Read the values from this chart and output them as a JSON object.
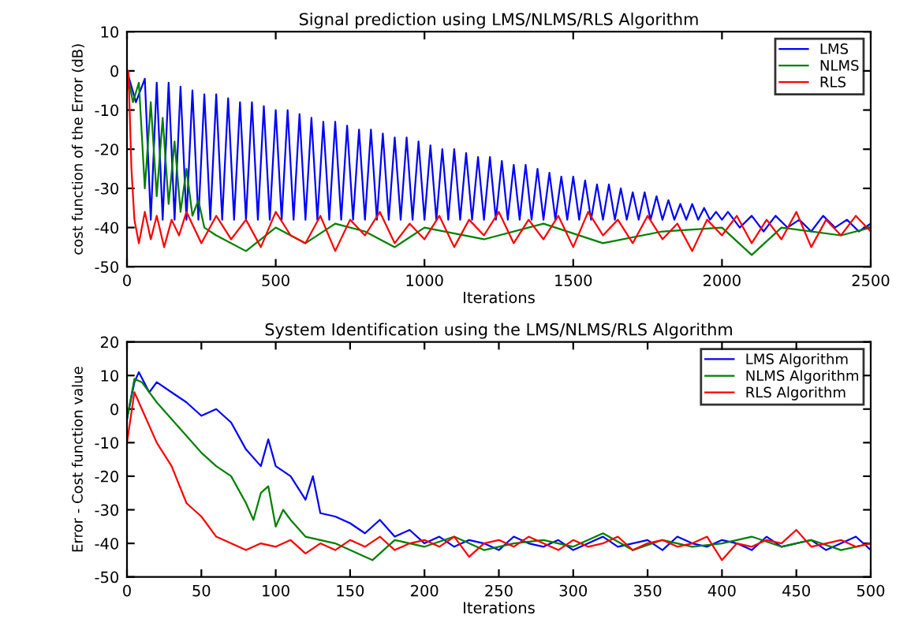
{
  "chart_data": [
    {
      "type": "line",
      "title": "Signal prediction using LMS/NLMS/RLS Algorithm",
      "xlabel": "Iterations",
      "ylabel": "cost function of the Error (dB)",
      "xlim": [
        0,
        2500
      ],
      "ylim": [
        -50,
        10
      ],
      "xticks": [
        0,
        500,
        1000,
        1500,
        2000,
        2500
      ],
      "yticks": [
        -50,
        -40,
        -30,
        -20,
        -10,
        0,
        10
      ],
      "legend": "top right",
      "grid": false,
      "series": [
        {
          "name": "LMS",
          "color": "#0000ff",
          "x": [
            0,
            30,
            60,
            80,
            100,
            120,
            140,
            160,
            180,
            200,
            220,
            240,
            260,
            280,
            300,
            320,
            340,
            360,
            380,
            400,
            420,
            440,
            460,
            480,
            500,
            520,
            540,
            560,
            580,
            600,
            620,
            640,
            660,
            680,
            700,
            720,
            740,
            760,
            780,
            800,
            820,
            840,
            860,
            880,
            900,
            920,
            940,
            960,
            980,
            1000,
            1020,
            1040,
            1060,
            1080,
            1100,
            1120,
            1140,
            1160,
            1180,
            1200,
            1220,
            1240,
            1260,
            1280,
            1300,
            1320,
            1340,
            1360,
            1380,
            1400,
            1420,
            1440,
            1460,
            1480,
            1500,
            1520,
            1540,
            1560,
            1580,
            1600,
            1620,
            1640,
            1660,
            1680,
            1700,
            1720,
            1740,
            1760,
            1780,
            1800,
            1820,
            1840,
            1860,
            1880,
            1900,
            1920,
            1940,
            1960,
            1980,
            2000,
            2020,
            2060,
            2100,
            2140,
            2180,
            2220,
            2260,
            2300,
            2340,
            2380,
            2420,
            2460,
            2500
          ],
          "values": [
            0,
            -8,
            -2,
            -38,
            -3,
            -38,
            -3,
            -38,
            -4,
            -38,
            -5,
            -38,
            -6,
            -38,
            -6,
            -38,
            -7,
            -38,
            -8,
            -38,
            -8,
            -38,
            -9,
            -38,
            -10,
            -38,
            -10,
            -38,
            -11,
            -38,
            -12,
            -38,
            -13,
            -38,
            -13,
            -38,
            -14,
            -38,
            -15,
            -38,
            -15,
            -38,
            -16,
            -38,
            -17,
            -38,
            -17,
            -38,
            -18,
            -38,
            -19,
            -38,
            -20,
            -38,
            -20,
            -38,
            -21,
            -38,
            -22,
            -38,
            -22,
            -38,
            -23,
            -38,
            -24,
            -38,
            -24,
            -38,
            -25,
            -38,
            -26,
            -38,
            -27,
            -38,
            -27,
            -38,
            -28,
            -38,
            -29,
            -38,
            -29,
            -38,
            -30,
            -38,
            -31,
            -38,
            -31,
            -38,
            -32,
            -38,
            -33,
            -38,
            -34,
            -38,
            -34,
            -38,
            -35,
            -38,
            -36,
            -38,
            -36,
            -40,
            -37,
            -41,
            -37,
            -40,
            -38,
            -41,
            -37,
            -40,
            -38,
            -41,
            -39
          ]
        },
        {
          "name": "NLMS",
          "color": "#008000",
          "x": [
            0,
            20,
            40,
            60,
            80,
            100,
            120,
            140,
            160,
            180,
            200,
            220,
            240,
            260,
            300,
            400,
            500,
            600,
            700,
            800,
            900,
            1000,
            1200,
            1400,
            1600,
            1800,
            2000,
            2100,
            2200,
            2400,
            2500
          ],
          "values": [
            0,
            -8,
            -3,
            -30,
            -8,
            -32,
            -12,
            -34,
            -18,
            -36,
            -25,
            -37,
            -33,
            -40,
            -42,
            -46,
            -40,
            -44,
            -39,
            -41,
            -45,
            -40,
            -43,
            -39,
            -44,
            -41,
            -40,
            -47,
            -40,
            -42,
            -40
          ]
        },
        {
          "name": "RLS",
          "color": "#ff0000",
          "x": [
            0,
            5,
            15,
            25,
            40,
            60,
            80,
            100,
            125,
            150,
            175,
            200,
            250,
            300,
            350,
            400,
            450,
            500,
            550,
            600,
            650,
            700,
            750,
            800,
            850,
            900,
            950,
            1000,
            1050,
            1100,
            1150,
            1200,
            1250,
            1300,
            1350,
            1400,
            1450,
            1500,
            1550,
            1600,
            1650,
            1700,
            1750,
            1800,
            1850,
            1900,
            1950,
            2000,
            2050,
            2100,
            2150,
            2200,
            2250,
            2300,
            2350,
            2400,
            2450,
            2500
          ],
          "values": [
            -5,
            0,
            -25,
            -38,
            -44,
            -36,
            -43,
            -37,
            -45,
            -38,
            -42,
            -36,
            -44,
            -37,
            -43,
            -38,
            -45,
            -36,
            -42,
            -44,
            -37,
            -46,
            -38,
            -42,
            -36,
            -44,
            -39,
            -43,
            -37,
            -45,
            -38,
            -42,
            -36,
            -44,
            -38,
            -43,
            -37,
            -45,
            -36,
            -42,
            -38,
            -44,
            -37,
            -43,
            -39,
            -46,
            -38,
            -42,
            -37,
            -44,
            -38,
            -43,
            -36,
            -45,
            -38,
            -42,
            -37,
            -41
          ]
        }
      ]
    },
    {
      "type": "line",
      "title": "System Identification using the LMS/NLMS/RLS Algorithm",
      "xlabel": "Iterations",
      "ylabel": "Error - Cost function value",
      "xlim": [
        0,
        500
      ],
      "ylim": [
        -50,
        20
      ],
      "xticks": [
        0,
        50,
        100,
        150,
        200,
        250,
        300,
        350,
        400,
        450,
        500
      ],
      "yticks": [
        -50,
        -40,
        -30,
        -20,
        -10,
        0,
        10,
        20
      ],
      "legend": "top right",
      "grid": false,
      "series": [
        {
          "name": "LMS Algorithm",
          "color": "#0000ff",
          "x": [
            0,
            5,
            8,
            15,
            20,
            30,
            40,
            50,
            60,
            70,
            80,
            90,
            95,
            100,
            110,
            120,
            125,
            130,
            140,
            150,
            160,
            170,
            180,
            190,
            200,
            210,
            220,
            230,
            240,
            250,
            260,
            270,
            280,
            290,
            300,
            310,
            320,
            330,
            340,
            350,
            360,
            370,
            380,
            390,
            400,
            410,
            420,
            430,
            440,
            450,
            460,
            470,
            480,
            490,
            500
          ],
          "values": [
            -3,
            8,
            11,
            5,
            8,
            5,
            2,
            -2,
            0,
            -4,
            -12,
            -17,
            -9,
            -17,
            -20,
            -27,
            -20,
            -31,
            -32,
            -34,
            -37,
            -33,
            -38,
            -36,
            -40,
            -38,
            -41,
            -39,
            -40,
            -42,
            -38,
            -40,
            -41,
            -39,
            -42,
            -40,
            -38,
            -41,
            -40,
            -39,
            -42,
            -38,
            -40,
            -41,
            -39,
            -40,
            -42,
            -38,
            -41,
            -40,
            -39,
            -42,
            -40,
            -38,
            -42
          ]
        },
        {
          "name": "NLMS Algorithm",
          "color": "#008000",
          "x": [
            0,
            5,
            10,
            20,
            30,
            40,
            50,
            60,
            70,
            80,
            85,
            90,
            95,
            100,
            105,
            110,
            120,
            140,
            165,
            180,
            200,
            220,
            240,
            260,
            280,
            300,
            320,
            340,
            360,
            380,
            400,
            420,
            440,
            460,
            480,
            500
          ],
          "values": [
            -3,
            9,
            8,
            2,
            -3,
            -8,
            -13,
            -17,
            -20,
            -28,
            -33,
            -25,
            -23,
            -35,
            -30,
            -33,
            -38,
            -40,
            -45,
            -39,
            -41,
            -38,
            -42,
            -40,
            -39,
            -41,
            -37,
            -42,
            -39,
            -41,
            -40,
            -38,
            -41,
            -39,
            -42,
            -40
          ]
        },
        {
          "name": "RLS Algorithm",
          "color": "#ff0000",
          "x": [
            0,
            5,
            10,
            20,
            30,
            40,
            50,
            60,
            70,
            80,
            90,
            100,
            110,
            120,
            130,
            140,
            150,
            160,
            170,
            180,
            190,
            200,
            210,
            220,
            230,
            240,
            250,
            260,
            270,
            280,
            290,
            300,
            310,
            320,
            330,
            340,
            350,
            360,
            370,
            380,
            390,
            400,
            410,
            420,
            430,
            440,
            450,
            460,
            470,
            480,
            490,
            500
          ],
          "values": [
            -10,
            5,
            0,
            -10,
            -17,
            -28,
            -32,
            -38,
            -40,
            -42,
            -40,
            -41,
            -39,
            -43,
            -40,
            -42,
            -39,
            -41,
            -38,
            -42,
            -40,
            -39,
            -41,
            -38,
            -44,
            -40,
            -39,
            -41,
            -38,
            -40,
            -42,
            -39,
            -41,
            -40,
            -38,
            -42,
            -40,
            -39,
            -41,
            -40,
            -38,
            -45,
            -40,
            -41,
            -39,
            -40,
            -36,
            -41,
            -40,
            -39,
            -41,
            -40
          ]
        }
      ]
    }
  ]
}
